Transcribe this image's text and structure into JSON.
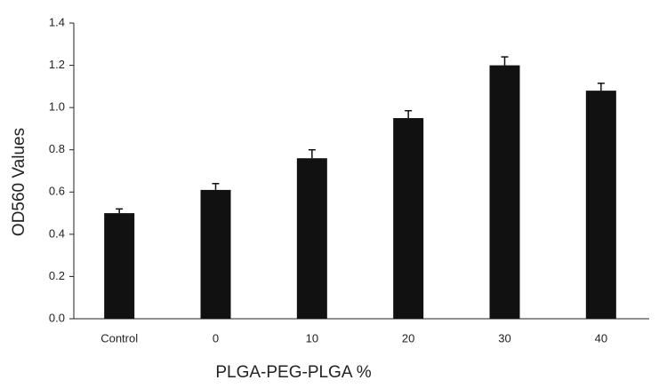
{
  "chart_data": {
    "type": "bar",
    "x_label": "PLGA-PEG-PLGA %",
    "y_label": "OD560 Values",
    "categories": [
      "Control",
      "0",
      "10",
      "20",
      "30",
      "40"
    ],
    "values": [
      0.5,
      0.61,
      0.76,
      0.95,
      1.2,
      1.08
    ],
    "errors": [
      0.02,
      0.03,
      0.04,
      0.035,
      0.04,
      0.035
    ],
    "color": "#111111",
    "ylim": [
      0,
      1.4
    ],
    "yticks": [
      {
        "value": 0,
        "label": "0.0"
      },
      0.2,
      0.4,
      0.6,
      0.8,
      {
        "value": 1,
        "label": "1.0"
      },
      1.2,
      1.4
    ],
    "grid": false
  }
}
